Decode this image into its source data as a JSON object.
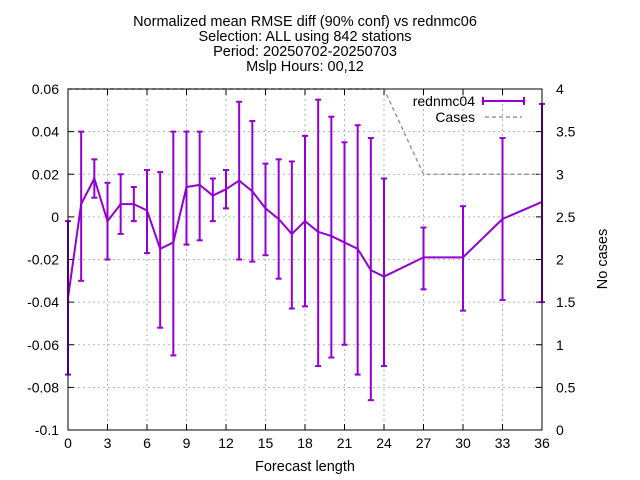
{
  "chart_data": {
    "type": "line",
    "title_lines": [
      "Normalized mean RMSE diff (90% conf) vs rednmc06",
      "Selection: ALL using   842 stations",
      "Period: 20250702-20250703",
      "Mslp   Hours: 00,12"
    ],
    "xlabel": "Forecast length",
    "ylabel": "",
    "y2label": "No cases",
    "xlim": [
      0,
      36
    ],
    "ylim": [
      -0.1,
      0.06
    ],
    "y2lim": [
      0,
      4
    ],
    "x_ticks": [
      "0",
      "3",
      "6",
      "9",
      "12",
      "15",
      "18",
      "21",
      "24",
      "27",
      "30",
      "33",
      "36"
    ],
    "y_ticks": [
      "0.06",
      "0.04",
      "0.02",
      "0",
      "-0.02",
      "-0.04",
      "-0.06",
      "-0.08",
      "-0.1"
    ],
    "y2_ticks": [
      "4",
      "3.5",
      "3",
      "2.5",
      "2",
      "1.5",
      "1",
      "0.5",
      "0"
    ],
    "grid": true,
    "legend_position": "top-right",
    "series": [
      {
        "name": "rednmc04",
        "color": "#9400d3",
        "style": "line-errorbars",
        "x": [
          0,
          1,
          2,
          3,
          4,
          5,
          6,
          7,
          8,
          9,
          10,
          11,
          12,
          13,
          14,
          15,
          16,
          17,
          18,
          19,
          20,
          21,
          22,
          23,
          24,
          27,
          30,
          33,
          36
        ],
        "y": [
          -0.038,
          0.006,
          0.018,
          -0.002,
          0.006,
          0.006,
          0.003,
          -0.015,
          -0.012,
          0.014,
          0.015,
          0.01,
          0.013,
          0.017,
          0.012,
          0.004,
          -0.001,
          -0.008,
          -0.002,
          -0.007,
          -0.009,
          -0.012,
          -0.015,
          -0.025,
          -0.028,
          -0.019,
          -0.019,
          -0.001,
          0.007
        ],
        "err_low": [
          -0.074,
          -0.03,
          0.009,
          -0.02,
          -0.008,
          -0.002,
          -0.017,
          -0.052,
          -0.065,
          -0.013,
          -0.011,
          -0.002,
          0.004,
          -0.02,
          -0.021,
          -0.018,
          -0.029,
          -0.043,
          -0.042,
          -0.07,
          -0.066,
          -0.06,
          -0.074,
          -0.086,
          -0.07,
          -0.034,
          -0.044,
          -0.039,
          -0.04
        ],
        "err_high": [
          -0.002,
          0.04,
          0.027,
          0.016,
          0.02,
          0.014,
          0.022,
          0.021,
          0.04,
          0.04,
          0.04,
          0.018,
          0.022,
          0.054,
          0.045,
          0.025,
          0.027,
          0.026,
          0.038,
          0.055,
          0.047,
          0.035,
          0.043,
          0.037,
          0.018,
          -0.005,
          0.005,
          0.037,
          0.053
        ]
      },
      {
        "name": "Cases",
        "color": "#999999",
        "style": "dashed",
        "axis": "y2",
        "x": [
          0,
          24,
          27,
          30,
          33,
          36
        ],
        "y": [
          4,
          4,
          3,
          3,
          3,
          3
        ]
      }
    ]
  }
}
